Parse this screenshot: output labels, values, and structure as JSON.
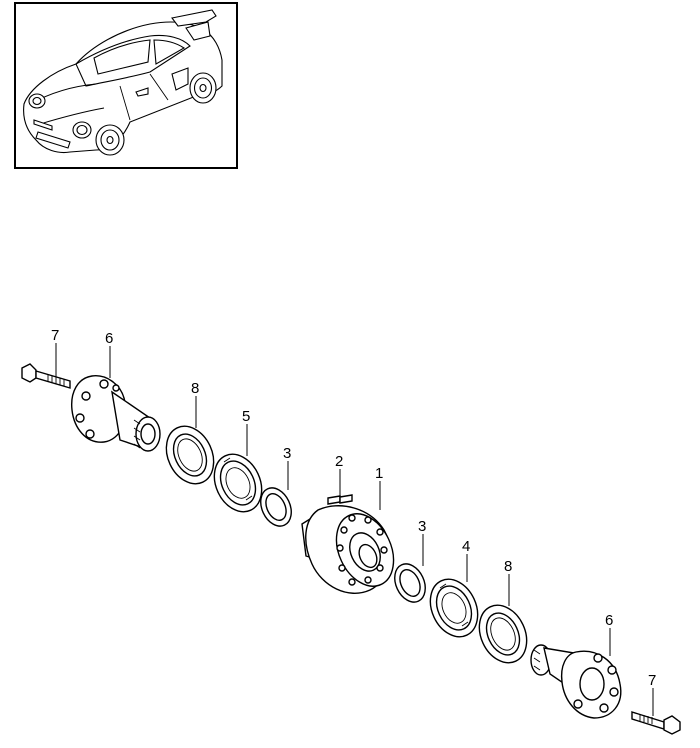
{
  "diagram": {
    "thumbnail": {
      "subject": "car-illustration"
    },
    "callouts": [
      {
        "id": "c7a",
        "label": "7"
      },
      {
        "id": "c6a",
        "label": "6"
      },
      {
        "id": "c8a",
        "label": "8"
      },
      {
        "id": "c5",
        "label": "5"
      },
      {
        "id": "c3a",
        "label": "3"
      },
      {
        "id": "c2",
        "label": "2"
      },
      {
        "id": "c1",
        "label": "1"
      },
      {
        "id": "c3b",
        "label": "3"
      },
      {
        "id": "c4",
        "label": "4"
      },
      {
        "id": "c8b",
        "label": "8"
      },
      {
        "id": "c6b",
        "label": "6"
      },
      {
        "id": "c7b",
        "label": "7"
      }
    ]
  }
}
